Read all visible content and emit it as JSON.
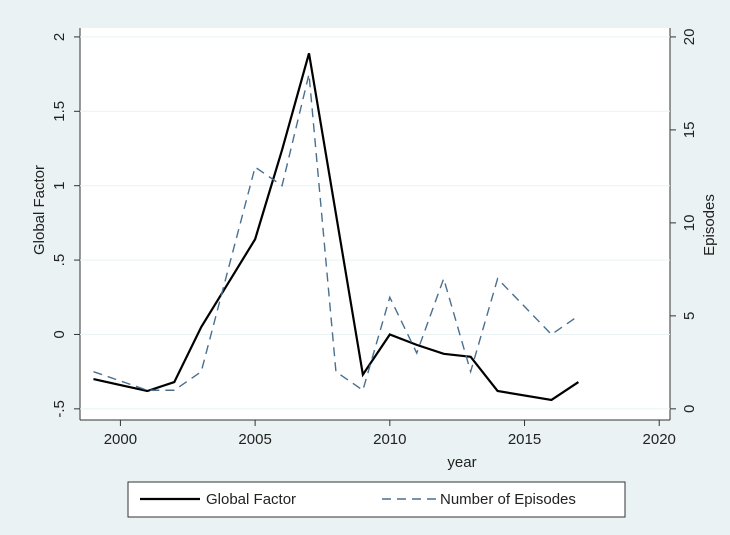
{
  "chart_data": {
    "type": "line",
    "x_label": "year",
    "y_label": "Global Factor",
    "y2_label": "Episodes",
    "x": [
      1999,
      2001,
      2002,
      2003,
      2005,
      2006,
      2007,
      2008,
      2009,
      2010,
      2011,
      2012,
      2013,
      2014,
      2016,
      2017
    ],
    "series": [
      {
        "name": "Global Factor",
        "color": "#000000",
        "dash": "solid",
        "axis": "y",
        "values": [
          -0.3,
          -0.38,
          -0.32,
          0.05,
          0.64,
          1.24,
          1.89,
          0.81,
          -0.27,
          0.0,
          -0.07,
          -0.13,
          -0.15,
          -0.38,
          -0.44,
          -0.32
        ]
      },
      {
        "name": "Number of Episodes",
        "color": "#4a6f8f",
        "dash": "dashed",
        "axis": "y2",
        "values": [
          2,
          1,
          1,
          2,
          13,
          12,
          18,
          2,
          1,
          6,
          3,
          7,
          2,
          7,
          4,
          5
        ]
      }
    ],
    "xlim": [
      1998.5,
      2020.4
    ],
    "xticks": [
      2000,
      2005,
      2010,
      2015,
      2020
    ],
    "ylim": [
      -0.575,
      2.06
    ],
    "yticks": [
      {
        "value": -0.5,
        "label": "-.5"
      },
      0,
      {
        "value": 0.5,
        "label": ".5"
      },
      1,
      {
        "value": 1.5,
        "label": "1.5"
      },
      2
    ],
    "y2lim": [
      -0.6,
      20.48
    ],
    "y2ticks": [
      0,
      5,
      10,
      15,
      20
    ],
    "grid": true,
    "legend": "bottom"
  }
}
